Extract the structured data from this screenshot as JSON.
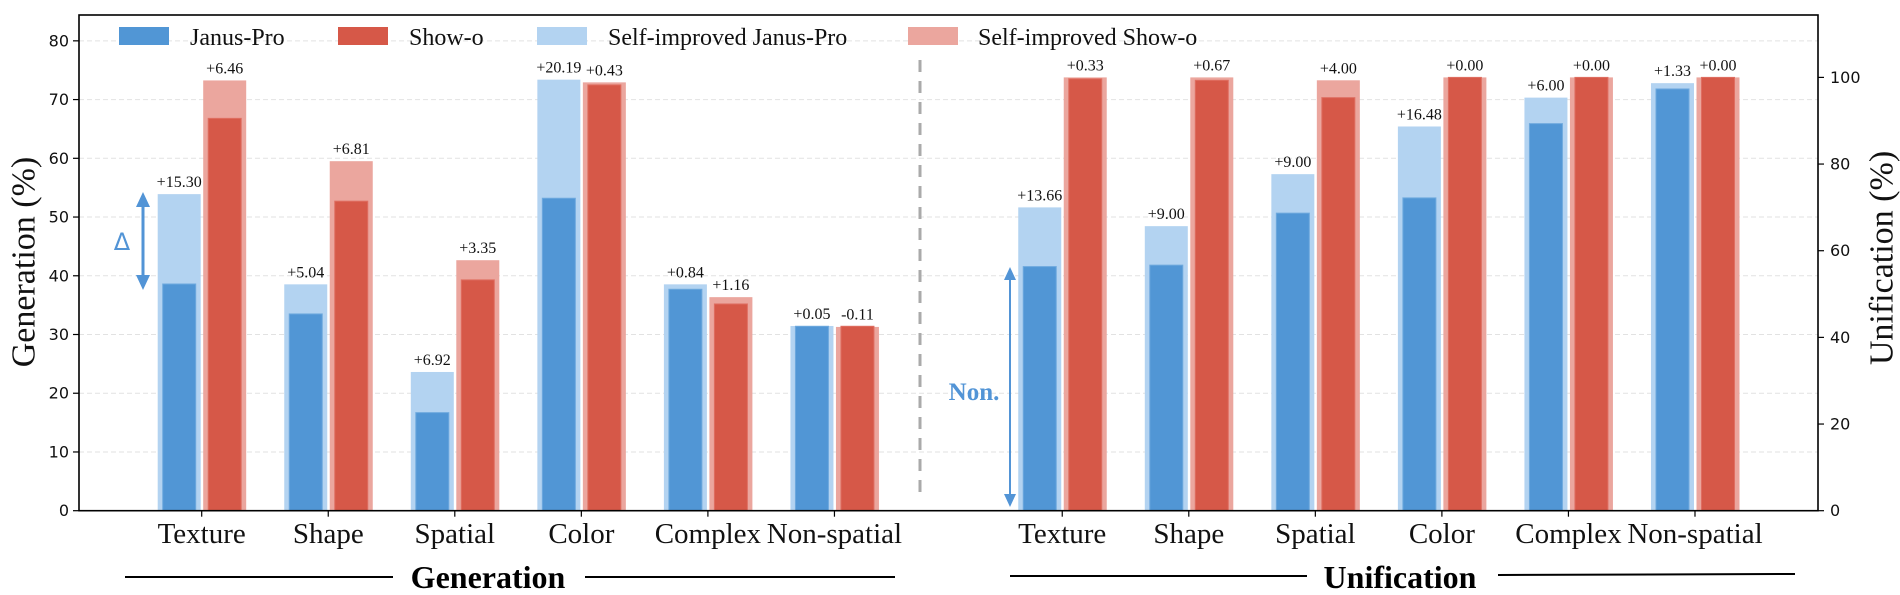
{
  "chart_data": {
    "type": "bar",
    "title": "",
    "categories": [
      "Texture",
      "Shape",
      "Spatial",
      "Color",
      "Complex",
      "Non-spatial"
    ],
    "group_labels": [
      "Generation",
      "Unification"
    ],
    "legend": {
      "position": "top",
      "entries": [
        {
          "label": "Janus-Pro",
          "color": "#5196d5"
        },
        {
          "label": "Show-o",
          "color": "#d65848"
        },
        {
          "label": "Self-improved Janus-Pro",
          "color": "#b3d3f1"
        },
        {
          "label": "Self-improved Show-o",
          "color": "#eba69e"
        }
      ]
    },
    "left_axis": {
      "label": "Generation (%)",
      "ylim": [
        0,
        84.4
      ],
      "ticks": [
        0,
        10,
        20,
        30,
        40,
        50,
        60,
        70,
        80
      ]
    },
    "right_axis": {
      "label": "Unification (%)",
      "ylim": [
        0,
        114.4
      ],
      "ticks": [
        0,
        20,
        40,
        60,
        80,
        100
      ]
    },
    "grid": true,
    "panels": [
      {
        "name": "Generation",
        "axis": "left",
        "series": [
          {
            "name": "Janus-Pro",
            "values": [
              38.6,
              33.5,
              16.7,
              53.2,
              37.7,
              31.4
            ]
          },
          {
            "name": "Self-improved Janus-Pro",
            "values": [
              53.9,
              38.54,
              23.62,
              73.39,
              38.54,
              31.45
            ],
            "delta_labels": [
              "+15.30",
              "+5.04",
              "+6.92",
              "+20.19",
              "+0.84",
              "+0.05"
            ]
          },
          {
            "name": "Show-o",
            "values": [
              66.8,
              52.7,
              39.3,
              72.5,
              35.2,
              31.4
            ]
          },
          {
            "name": "Self-improved Show-o",
            "values": [
              73.26,
              59.51,
              42.65,
              72.93,
              36.36,
              31.29
            ],
            "delta_labels": [
              "+6.46",
              "+6.81",
              "+3.35",
              "+0.43",
              "+1.16",
              "-0.11"
            ]
          }
        ]
      },
      {
        "name": "Unification",
        "axis": "right",
        "series": [
          {
            "name": "Janus-Pro",
            "values": [
              56.34,
              56.67,
              68.67,
              72.19,
              89.33,
              97.33
            ]
          },
          {
            "name": "Self-improved Janus-Pro",
            "values": [
              70.0,
              65.67,
              77.67,
              88.67,
              95.33,
              98.67
            ],
            "delta_labels": [
              "+13.66",
              "+9.00",
              "+9.00",
              "+16.48",
              "+6.00",
              "+1.33"
            ]
          },
          {
            "name": "Show-o",
            "values": [
              99.67,
              99.33,
              95.33,
              100.0,
              100.0,
              100.0
            ]
          },
          {
            "name": "Self-improved Show-o",
            "values": [
              100.0,
              100.0,
              99.33,
              100.0,
              100.0,
              100.0
            ],
            "delta_labels": [
              "+0.33",
              "+0.67",
              "+4.00",
              "+0.00",
              "+0.00",
              "+0.00"
            ]
          }
        ]
      }
    ],
    "annotations": {
      "delta_symbol": "Δ",
      "non_label": "Non."
    },
    "colors": {
      "janus_base": "#5196d5",
      "janus_self": "#b3d3f1",
      "showo_base": "#d65848",
      "showo_self": "#eba69e",
      "annotation": "#5294d6",
      "separator": "#aaaaaa",
      "grid": "#e2e2e2"
    }
  }
}
